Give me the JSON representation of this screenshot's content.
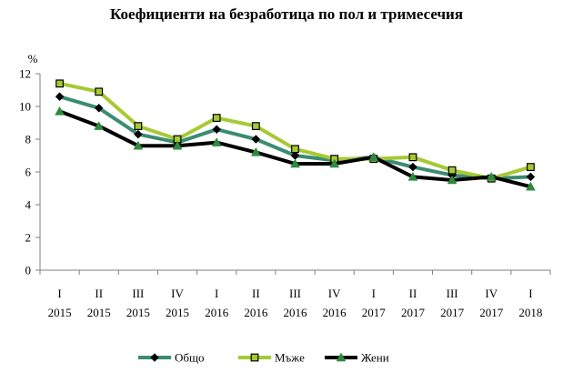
{
  "chart_data": {
    "type": "line",
    "title": "Коефициенти на безработица по пол и тримесечия",
    "ylabel": "%",
    "xlabel": "",
    "ylim": [
      0,
      12
    ],
    "yticks": [
      0,
      2,
      4,
      6,
      8,
      10,
      12
    ],
    "grid": false,
    "legend_position": "bottom",
    "categories": [
      {
        "quarter": "I",
        "year": "2015"
      },
      {
        "quarter": "II",
        "year": "2015"
      },
      {
        "quarter": "III",
        "year": "2015"
      },
      {
        "quarter": "IV",
        "year": "2015"
      },
      {
        "quarter": "I",
        "year": "2016"
      },
      {
        "quarter": "II",
        "year": "2016"
      },
      {
        "quarter": "III",
        "year": "2016"
      },
      {
        "quarter": "IV",
        "year": "2016"
      },
      {
        "quarter": "I",
        "year": "2017"
      },
      {
        "quarter": "II",
        "year": "2017"
      },
      {
        "quarter": "III",
        "year": "2017"
      },
      {
        "quarter": "IV",
        "year": "2017"
      },
      {
        "quarter": "I",
        "year": "2018"
      }
    ],
    "series": [
      {
        "name": "Общо",
        "color": "#3a8c72",
        "marker": "diamond",
        "marker_color": "#000000",
        "values": [
          10.6,
          9.9,
          8.3,
          7.8,
          8.6,
          8.0,
          7.0,
          6.7,
          6.9,
          6.3,
          5.8,
          5.6,
          5.7
        ]
      },
      {
        "name": "Мъже",
        "color": "#a6c934",
        "marker": "square",
        "marker_color": "#a6c934",
        "values": [
          11.4,
          10.9,
          8.8,
          8.0,
          9.3,
          8.8,
          7.4,
          6.8,
          6.8,
          6.9,
          6.1,
          5.6,
          6.3
        ]
      },
      {
        "name": "Жени",
        "color": "#000000",
        "marker": "triangle",
        "marker_color": "#2e8b3e",
        "values": [
          9.7,
          8.8,
          7.6,
          7.6,
          7.8,
          7.2,
          6.5,
          6.5,
          6.9,
          5.7,
          5.5,
          5.7,
          5.1
        ]
      }
    ]
  }
}
